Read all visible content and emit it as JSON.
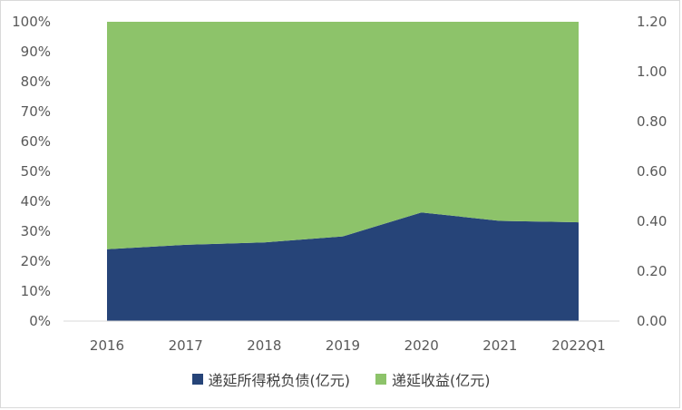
{
  "chart_data": {
    "type": "area",
    "stacking": "percent",
    "categories": [
      "2016",
      "2017",
      "2018",
      "2019",
      "2020",
      "2021",
      "2022Q1"
    ],
    "series": [
      {
        "name": "递延所得税负债(亿元)",
        "color": "#264478",
        "values_pct": [
          24,
          25.5,
          26.3,
          28.3,
          36.3,
          33.5,
          33
        ]
      },
      {
        "name": "递延收益(亿元)",
        "color": "#8dc36a",
        "values_pct": [
          76,
          74.5,
          73.7,
          71.7,
          63.7,
          66.5,
          67
        ]
      }
    ],
    "y_left": {
      "ticks": [
        "0%",
        "10%",
        "20%",
        "30%",
        "40%",
        "50%",
        "60%",
        "70%",
        "80%",
        "90%",
        "100%"
      ],
      "range": [
        0,
        100
      ]
    },
    "y_right": {
      "ticks": [
        "0.00",
        "0.20",
        "0.40",
        "0.60",
        "0.80",
        "1.00",
        "1.20"
      ],
      "range": [
        0,
        1.2
      ]
    },
    "legend_position": "bottom",
    "grid": false
  }
}
